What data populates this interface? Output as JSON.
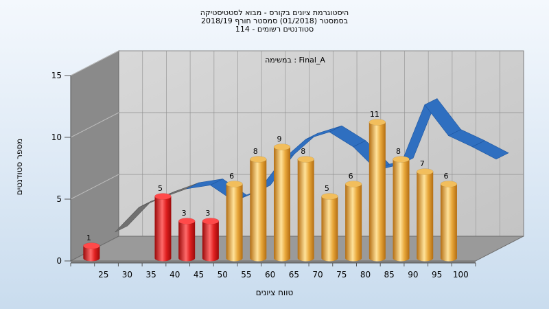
{
  "chart_data": {
    "type": "bar",
    "title_lines": [
      "היסטוגרמת ציונים בקורס - מבוא לסטטיסטיקה",
      "בסמסטר  (01/2018)  סמסטר חורף 2018/19",
      "סטודנטים רשומים - 114"
    ],
    "annotation": "במשימה : Final_A",
    "xlabel": "טווח ציונים",
    "ylabel": "מספר סטודנטים",
    "x_ticks": [
      "25",
      "30",
      "35",
      "40",
      "45",
      "50",
      "55",
      "60",
      "65",
      "70",
      "75",
      "80",
      "85",
      "90",
      "95",
      "100"
    ],
    "y_ticks": [
      "0",
      "5",
      "10",
      "15"
    ],
    "ylim": [
      0,
      15
    ],
    "bars": [
      {
        "x": 25,
        "value": 1,
        "label": "1",
        "color": "red"
      },
      {
        "x": 40,
        "value": 5,
        "label": "5",
        "color": "red"
      },
      {
        "x": 45,
        "value": 3,
        "label": "3",
        "color": "red"
      },
      {
        "x": 50,
        "value": 3,
        "label": "3",
        "color": "red"
      },
      {
        "x": 55,
        "value": 6,
        "label": "6",
        "color": "gold"
      },
      {
        "x": 60,
        "value": 8,
        "label": "8",
        "color": "gold"
      },
      {
        "x": 65,
        "value": 9,
        "label": "9",
        "color": "gold"
      },
      {
        "x": 70,
        "value": 8,
        "label": "8",
        "color": "gold"
      },
      {
        "x": 75,
        "value": 5,
        "label": "5",
        "color": "gold"
      },
      {
        "x": 80,
        "value": 6,
        "label": "6",
        "color": "gold"
      },
      {
        "x": 85,
        "value": 11,
        "label": "11",
        "color": "gold"
      },
      {
        "x": 90,
        "value": 8,
        "label": "8",
        "color": "gold"
      },
      {
        "x": 95,
        "value": 7,
        "label": "7",
        "color": "gold"
      },
      {
        "x": 100,
        "value": 6,
        "label": "6",
        "color": "gold"
      }
    ],
    "trend_line": [
      {
        "x": 27.5,
        "y": 1.5
      },
      {
        "x": 32.5,
        "y": 3.5
      },
      {
        "x": 37.5,
        "y": 4.3
      },
      {
        "x": 42.5,
        "y": 5.0
      },
      {
        "x": 47.5,
        "y": 5.3
      },
      {
        "x": 52.5,
        "y": 4.0
      },
      {
        "x": 57.5,
        "y": 4.8
      },
      {
        "x": 62.5,
        "y": 7.3
      },
      {
        "x": 67.5,
        "y": 9.0
      },
      {
        "x": 72.5,
        "y": 9.6
      },
      {
        "x": 77.5,
        "y": 8.4
      },
      {
        "x": 82.5,
        "y": 6.5
      },
      {
        "x": 87.5,
        "y": 7.0
      },
      {
        "x": 92.5,
        "y": 11.8
      },
      {
        "x": 97.5,
        "y": 9.3
      },
      {
        "x": 102.5,
        "y": 8.4
      },
      {
        "x": 107.5,
        "y": 7.4
      }
    ],
    "colors": {
      "bar_red": "#e02020",
      "bar_gold": "#e8a73a",
      "trend_front": "#2f6fc0",
      "trend_back": "#707070",
      "back_wall": "#c4c4c4",
      "side_wall": "#8a8a8a",
      "floor": "#9a9a9a"
    }
  }
}
